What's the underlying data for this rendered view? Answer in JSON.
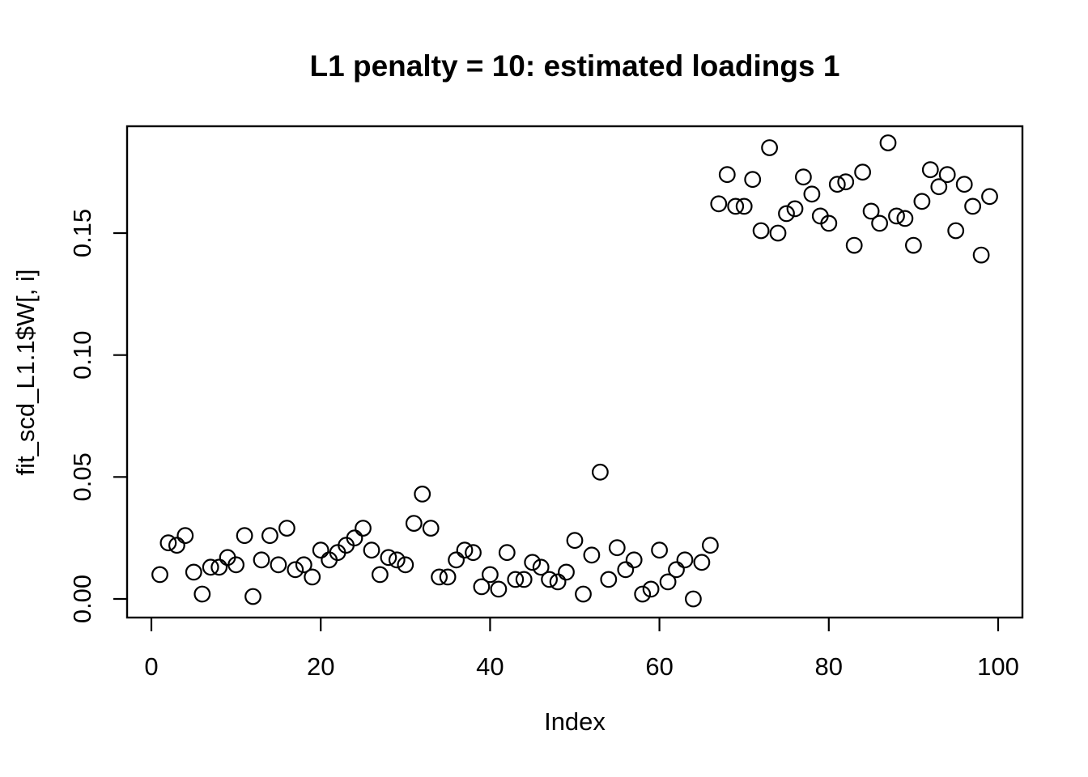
{
  "figure": {
    "background_color": "#FFFFFF",
    "foreground_color": "#000000"
  },
  "chart_data": {
    "type": "scatter",
    "title": "L1 penalty = 10: estimated loadings 1",
    "xlabel": "Index",
    "ylabel": "fit_scd_L1.1$W[, i]",
    "marker": "open-circle",
    "marker_color": "#000000",
    "grid": false,
    "legend": null,
    "xlim": [
      -3,
      104
    ],
    "ylim": [
      -0.0076,
      0.1938
    ],
    "x_ticks": [
      0,
      20,
      40,
      60,
      80,
      100
    ],
    "x_tick_labels": [
      "0",
      "20",
      "40",
      "60",
      "80",
      "100"
    ],
    "y_ticks": [
      0.0,
      0.05,
      0.1,
      0.15
    ],
    "y_tick_labels": [
      "0.00",
      "0.05",
      "0.10",
      "0.15"
    ],
    "series": [
      {
        "name": "fit_scd_L1.1$W[, i]",
        "x": [
          1,
          2,
          3,
          4,
          5,
          6,
          7,
          8,
          9,
          10,
          11,
          12,
          13,
          14,
          15,
          16,
          17,
          18,
          19,
          20,
          21,
          22,
          23,
          24,
          25,
          26,
          27,
          28,
          29,
          30,
          31,
          32,
          33,
          34,
          35,
          36,
          37,
          38,
          39,
          40,
          41,
          42,
          43,
          44,
          45,
          46,
          47,
          48,
          49,
          50,
          51,
          52,
          53,
          54,
          55,
          56,
          57,
          58,
          59,
          60,
          61,
          62,
          63,
          64,
          65,
          66,
          67,
          68,
          69,
          70,
          71,
          72,
          73,
          74,
          75,
          76,
          77,
          78,
          79,
          80,
          81,
          82,
          83,
          84,
          85,
          86,
          87,
          88,
          89,
          90,
          91,
          92,
          93,
          94,
          95,
          96,
          97,
          98,
          99
        ],
        "y": [
          0.01,
          0.023,
          0.022,
          0.026,
          0.011,
          0.002,
          0.013,
          0.013,
          0.017,
          0.014,
          0.026,
          0.001,
          0.016,
          0.026,
          0.014,
          0.029,
          0.012,
          0.014,
          0.009,
          0.02,
          0.016,
          0.019,
          0.022,
          0.025,
          0.029,
          0.02,
          0.01,
          0.017,
          0.016,
          0.014,
          0.031,
          0.043,
          0.029,
          0.009,
          0.009,
          0.016,
          0.02,
          0.019,
          0.005,
          0.01,
          0.004,
          0.019,
          0.008,
          0.008,
          0.015,
          0.013,
          0.008,
          0.007,
          0.011,
          0.024,
          0.002,
          0.018,
          0.052,
          0.008,
          0.021,
          0.012,
          0.016,
          0.002,
          0.004,
          0.02,
          0.007,
          0.012,
          0.016,
          0.0,
          0.015,
          0.022,
          0.162,
          0.174,
          0.161,
          0.161,
          0.172,
          0.151,
          0.185,
          0.15,
          0.158,
          0.16,
          0.173,
          0.166,
          0.157,
          0.154,
          0.17,
          0.171,
          0.145,
          0.175,
          0.159,
          0.154,
          0.187,
          0.157,
          0.156,
          0.145,
          0.163,
          0.176,
          0.169,
          0.174,
          0.151,
          0.17,
          0.161,
          0.141,
          0.165
        ]
      }
    ]
  }
}
